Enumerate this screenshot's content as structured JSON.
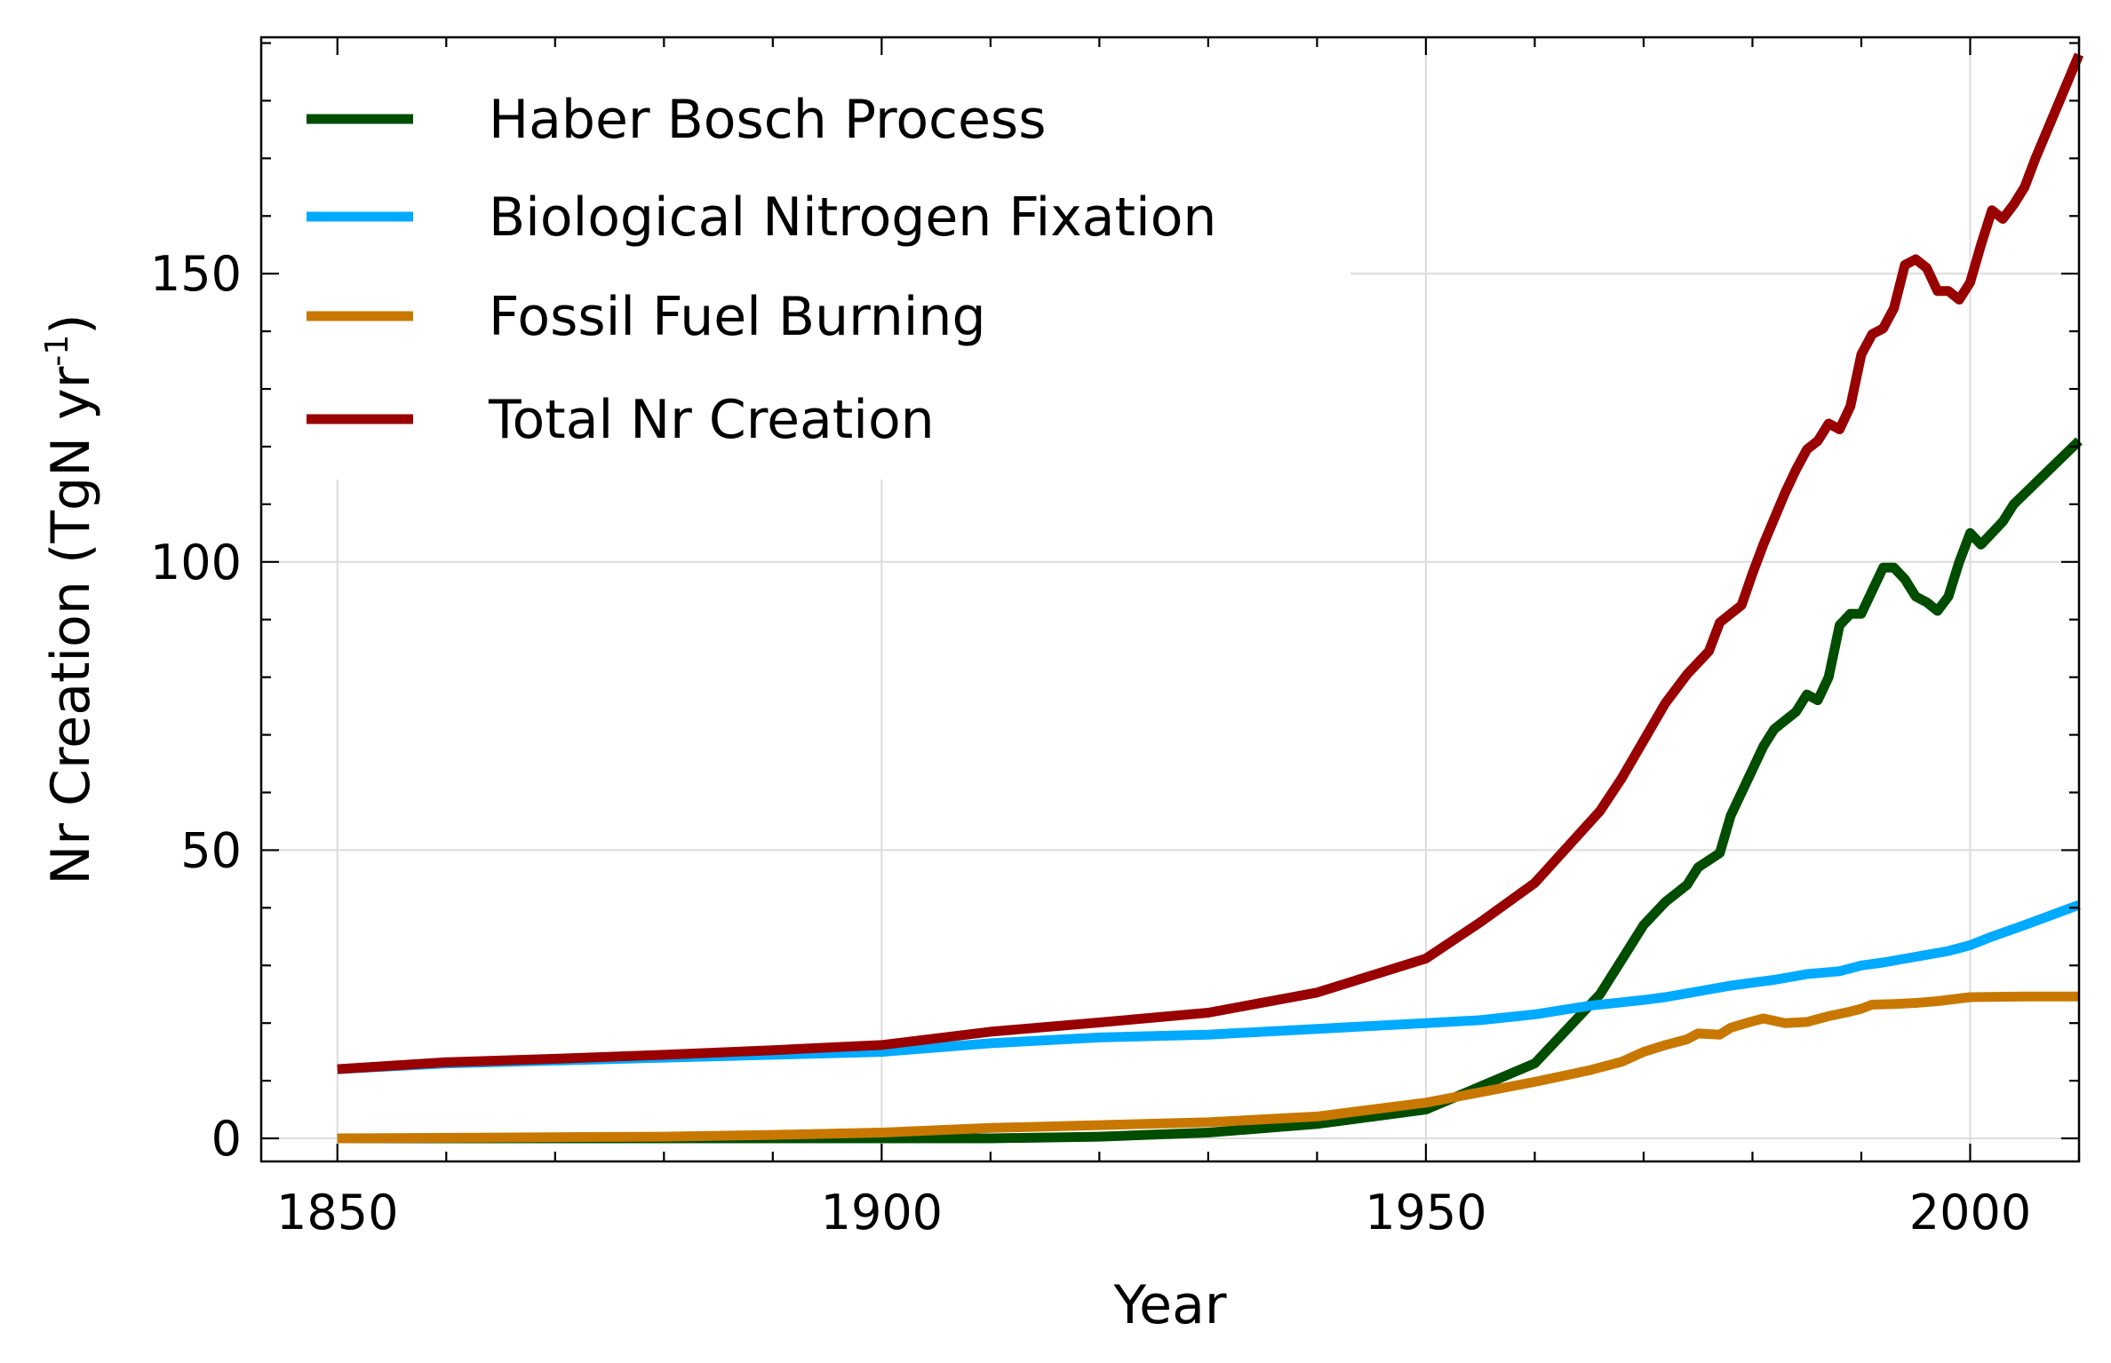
{
  "chart_data": {
    "type": "line",
    "xlabel": "Year",
    "ylabel": "Nr Creation (TgN yr",
    "ylabel_sup": "-1",
    "ylabel_close": ")",
    "xlim": [
      1843,
      2010
    ],
    "ylim": [
      -4,
      191
    ],
    "x_ticks": [
      1850,
      1900,
      1950,
      2000
    ],
    "y_ticks": [
      0,
      50,
      100,
      150
    ],
    "x_minor_step": 10,
    "y_minor_step": 10,
    "grid": true,
    "legend_position": "top-left",
    "series": [
      {
        "name": "Haber Bosch Process",
        "color": "#004d00",
        "points": [
          [
            1850,
            0
          ],
          [
            1900,
            0
          ],
          [
            1910,
            0
          ],
          [
            1920,
            0.3
          ],
          [
            1930,
            1
          ],
          [
            1940,
            2.5
          ],
          [
            1950,
            5
          ],
          [
            1955,
            9
          ],
          [
            1960,
            13
          ],
          [
            1963,
            19
          ],
          [
            1966,
            25
          ],
          [
            1968,
            31
          ],
          [
            1970,
            37
          ],
          [
            1972,
            41
          ],
          [
            1974,
            44
          ],
          [
            1975,
            47
          ],
          [
            1977,
            49.5
          ],
          [
            1978,
            56
          ],
          [
            1980,
            64
          ],
          [
            1981,
            68
          ],
          [
            1982,
            71
          ],
          [
            1984,
            74
          ],
          [
            1985,
            77
          ],
          [
            1986,
            76
          ],
          [
            1987,
            80
          ],
          [
            1988,
            89
          ],
          [
            1989,
            91
          ],
          [
            1990,
            91
          ],
          [
            1991,
            95
          ],
          [
            1992,
            99
          ],
          [
            1993,
            99
          ],
          [
            1994,
            97
          ],
          [
            1995,
            94
          ],
          [
            1996,
            93
          ],
          [
            1997,
            91.5
          ],
          [
            1998,
            94
          ],
          [
            1999,
            100
          ],
          [
            2000,
            105
          ],
          [
            2001,
            103
          ],
          [
            2002,
            105
          ],
          [
            2003,
            107
          ],
          [
            2004,
            110
          ],
          [
            2010,
            121
          ]
        ]
      },
      {
        "name": "Biological Nitrogen Fixation",
        "color": "#00aaff",
        "points": [
          [
            1850,
            12
          ],
          [
            1860,
            13
          ],
          [
            1870,
            13.5
          ],
          [
            1880,
            14
          ],
          [
            1890,
            14.5
          ],
          [
            1900,
            15
          ],
          [
            1910,
            16.5
          ],
          [
            1920,
            17.5
          ],
          [
            1930,
            18
          ],
          [
            1940,
            19
          ],
          [
            1950,
            20
          ],
          [
            1955,
            20.5
          ],
          [
            1960,
            21.5
          ],
          [
            1965,
            23
          ],
          [
            1970,
            24
          ],
          [
            1972,
            24.5
          ],
          [
            1975,
            25.5
          ],
          [
            1978,
            26.5
          ],
          [
            1980,
            27
          ],
          [
            1982,
            27.5
          ],
          [
            1985,
            28.5
          ],
          [
            1988,
            29
          ],
          [
            1990,
            30
          ],
          [
            1992,
            30.5
          ],
          [
            1995,
            31.5
          ],
          [
            1998,
            32.5
          ],
          [
            2000,
            33.5
          ],
          [
            2002,
            35
          ],
          [
            2005,
            37
          ],
          [
            2010,
            40.5
          ]
        ]
      },
      {
        "name": "Fossil Fuel Burning",
        "color": "#c87800",
        "points": [
          [
            1850,
            0
          ],
          [
            1870,
            0.2
          ],
          [
            1880,
            0.3
          ],
          [
            1890,
            0.6
          ],
          [
            1900,
            1
          ],
          [
            1910,
            1.8
          ],
          [
            1920,
            2.3
          ],
          [
            1930,
            2.8
          ],
          [
            1940,
            3.8
          ],
          [
            1950,
            6.2
          ],
          [
            1955,
            8
          ],
          [
            1960,
            9.8
          ],
          [
            1965,
            11.8
          ],
          [
            1968,
            13.3
          ],
          [
            1970,
            15
          ],
          [
            1972,
            16.2
          ],
          [
            1974,
            17.2
          ],
          [
            1975,
            18.2
          ],
          [
            1977,
            18
          ],
          [
            1978,
            19.2
          ],
          [
            1980,
            20.3
          ],
          [
            1981,
            20.8
          ],
          [
            1983,
            20
          ],
          [
            1985,
            20.2
          ],
          [
            1987,
            21.2
          ],
          [
            1989,
            22
          ],
          [
            1990,
            22.5
          ],
          [
            1991,
            23.2
          ],
          [
            1993,
            23.3
          ],
          [
            1995,
            23.5
          ],
          [
            1997,
            23.8
          ],
          [
            2000,
            24.5
          ],
          [
            2005,
            24.6
          ],
          [
            2010,
            24.6
          ]
        ]
      },
      {
        "name": "Total Nr Creation",
        "color": "#990000",
        "points": [
          [
            1850,
            12
          ],
          [
            1860,
            13.2
          ],
          [
            1870,
            13.8
          ],
          [
            1880,
            14.5
          ],
          [
            1890,
            15.3
          ],
          [
            1900,
            16.2
          ],
          [
            1910,
            18.5
          ],
          [
            1920,
            20.1
          ],
          [
            1930,
            21.8
          ],
          [
            1940,
            25.3
          ],
          [
            1950,
            31.2
          ],
          [
            1955,
            37.5
          ],
          [
            1960,
            44.3
          ],
          [
            1966,
            56.8
          ],
          [
            1968,
            62.5
          ],
          [
            1970,
            69
          ],
          [
            1972,
            75.5
          ],
          [
            1974,
            80.5
          ],
          [
            1976,
            84.5
          ],
          [
            1977,
            89.5
          ],
          [
            1979,
            92.5
          ],
          [
            1980,
            98
          ],
          [
            1981,
            103
          ],
          [
            1983,
            112
          ],
          [
            1984,
            116
          ],
          [
            1985,
            119.5
          ],
          [
            1986,
            121
          ],
          [
            1987,
            124
          ],
          [
            1988,
            123
          ],
          [
            1989,
            127
          ],
          [
            1990,
            136
          ],
          [
            1991,
            139.5
          ],
          [
            1992,
            140.5
          ],
          [
            1993,
            144
          ],
          [
            1994,
            151.5
          ],
          [
            1995,
            152.5
          ],
          [
            1996,
            151
          ],
          [
            1997,
            147
          ],
          [
            1998,
            147
          ],
          [
            1999,
            145.5
          ],
          [
            2000,
            148.5
          ],
          [
            2001,
            155
          ],
          [
            2002,
            161
          ],
          [
            2003,
            159.5
          ],
          [
            2004,
            162
          ],
          [
            2005,
            165
          ],
          [
            2006,
            170
          ],
          [
            2010,
            188
          ]
        ]
      }
    ]
  }
}
